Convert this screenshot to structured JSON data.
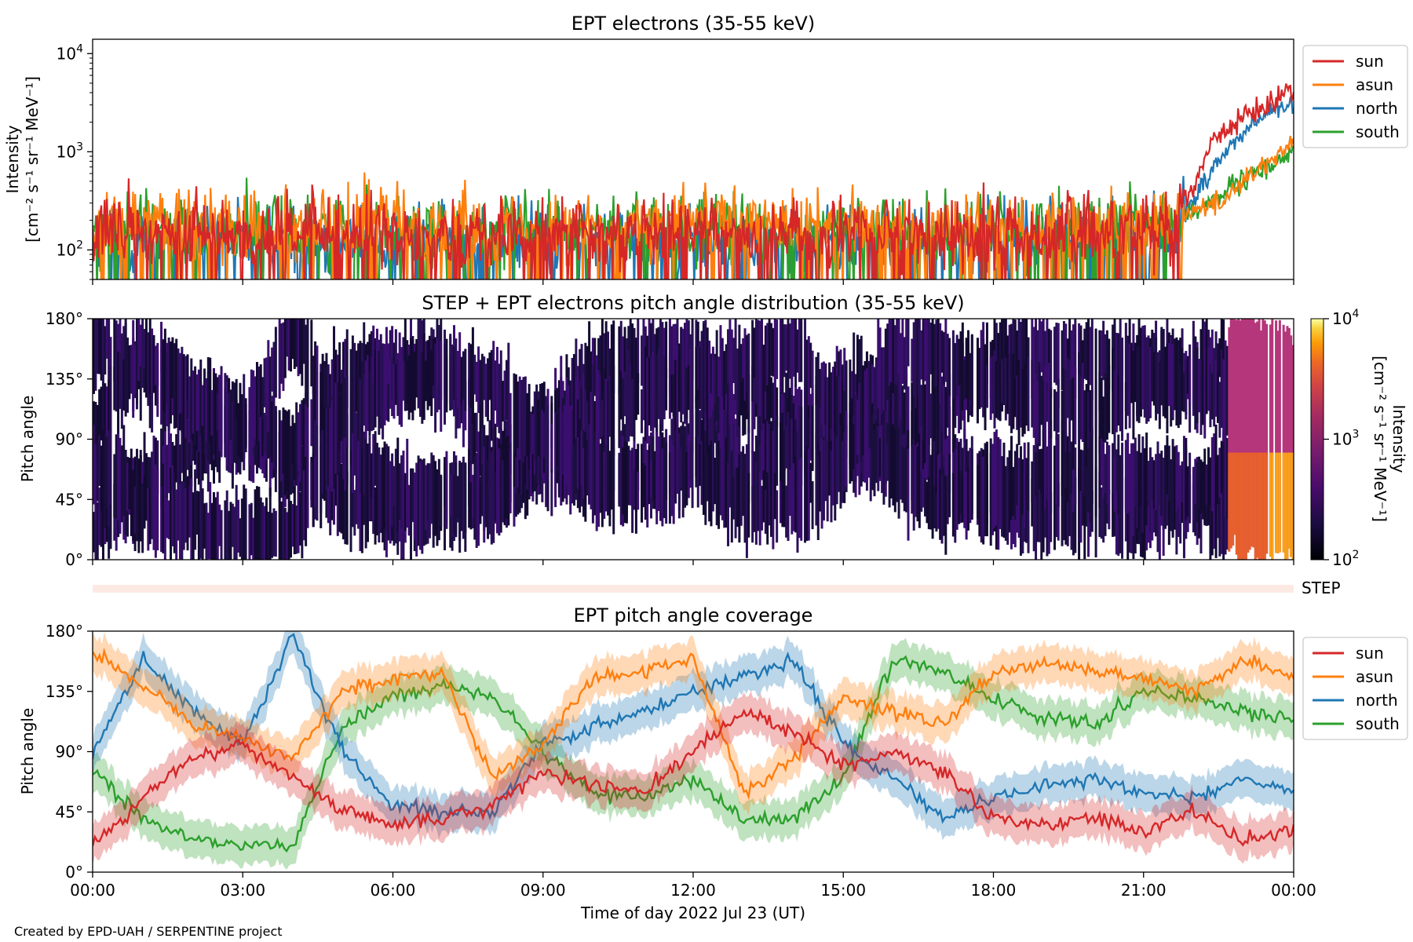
{
  "footer": {
    "credit": "Created by EPD-UAH / SERPENTINE project"
  },
  "x_axis": {
    "label": "Time of day 2022 Jul 23 (UT)",
    "ticks": [
      "00:00",
      "03:00",
      "06:00",
      "09:00",
      "12:00",
      "15:00",
      "18:00",
      "21:00",
      "00:00"
    ]
  },
  "colors": {
    "sun": "#d62728",
    "asun": "#ff7f0e",
    "north": "#1f77b4",
    "south": "#2ca02c"
  },
  "chart_data": [
    {
      "id": "intensity",
      "type": "line",
      "title": "EPT electrons (35-55 keV)",
      "ylabel": "Intensity",
      "yunit_line": "[cm⁻² s⁻¹ sr⁻¹ MeV⁻¹]",
      "yscale": "log",
      "ylim": [
        50,
        14000
      ],
      "yticks": [
        {
          "base": "10",
          "exp": "2"
        },
        {
          "base": "10",
          "exp": "3"
        },
        {
          "base": "10",
          "exp": "4"
        }
      ],
      "x_hours": [
        0,
        2,
        4,
        6,
        8,
        10,
        12,
        14,
        16,
        18,
        20,
        21.5,
        22,
        22.5,
        23,
        23.5,
        24
      ],
      "legend": [
        "sun",
        "asun",
        "north",
        "south"
      ],
      "series": [
        {
          "name": "sun",
          "median": [
            150,
            150,
            150,
            150,
            150,
            150,
            150,
            150,
            140,
            150,
            160,
            180,
            400,
            1500,
            2200,
            3000,
            4500
          ]
        },
        {
          "name": "asun",
          "median": [
            180,
            190,
            180,
            190,
            180,
            180,
            190,
            180,
            170,
            180,
            190,
            200,
            250,
            300,
            500,
            800,
            1200
          ]
        },
        {
          "name": "north",
          "median": [
            130,
            130,
            130,
            130,
            130,
            130,
            130,
            130,
            120,
            130,
            140,
            160,
            300,
            800,
            1500,
            2500,
            3000
          ]
        },
        {
          "name": "south",
          "median": [
            160,
            160,
            160,
            160,
            160,
            160,
            160,
            160,
            150,
            160,
            170,
            190,
            250,
            350,
            500,
            700,
            1000
          ]
        }
      ]
    },
    {
      "id": "pad",
      "type": "heatmap",
      "title": "STEP + EPT electrons pitch angle distribution (35-55 keV)",
      "ylabel": "Pitch angle",
      "ylim": [
        0,
        180
      ],
      "yticks": [
        "0°",
        "45°",
        "90°",
        "135°",
        "180°"
      ],
      "colorbar": {
        "label": "Intensity",
        "unit_line": "[cm⁻² s⁻¹ sr⁻¹ MeV⁻¹]",
        "scale": "log",
        "range": [
          100,
          10000
        ],
        "ticks": [
          {
            "base": "10",
            "exp": "2"
          },
          {
            "base": "10",
            "exp": "3"
          },
          {
            "base": "10",
            "exp": "4"
          }
        ]
      }
    },
    {
      "id": "step-strip",
      "type": "heatmap",
      "label": "STEP"
    },
    {
      "id": "coverage",
      "type": "line",
      "title": "EPT pitch angle coverage",
      "ylabel": "Pitch angle",
      "ylim": [
        0,
        180
      ],
      "yticks": [
        "0°",
        "45°",
        "90°",
        "135°",
        "180°"
      ],
      "x_hours": [
        0,
        1,
        2,
        3,
        4,
        5,
        6,
        7,
        8,
        9,
        10,
        11,
        12,
        13,
        14,
        15,
        16,
        17,
        18,
        19,
        20,
        21,
        22,
        23,
        24
      ],
      "legend": [
        "sun",
        "asun",
        "north",
        "south"
      ],
      "series": [
        {
          "name": "sun",
          "values": [
            20,
            55,
            85,
            95,
            70,
            45,
            35,
            40,
            50,
            75,
            65,
            60,
            90,
            120,
            105,
            80,
            90,
            75,
            40,
            35,
            40,
            30,
            45,
            25,
            30
          ]
        },
        {
          "name": "asun",
          "values": [
            165,
            140,
            110,
            100,
            85,
            135,
            145,
            150,
            70,
            95,
            145,
            150,
            160,
            60,
            85,
            130,
            120,
            110,
            150,
            155,
            150,
            145,
            135,
            160,
            145
          ]
        },
        {
          "name": "north",
          "values": [
            90,
            160,
            120,
            95,
            175,
            90,
            50,
            45,
            45,
            95,
            110,
            120,
            135,
            145,
            160,
            95,
            70,
            40,
            55,
            65,
            70,
            60,
            55,
            70,
            60
          ]
        },
        {
          "name": "south",
          "values": [
            75,
            40,
            25,
            20,
            20,
            110,
            130,
            140,
            130,
            90,
            60,
            55,
            70,
            40,
            40,
            70,
            160,
            150,
            130,
            115,
            110,
            135,
            130,
            120,
            115
          ]
        }
      ]
    }
  ]
}
